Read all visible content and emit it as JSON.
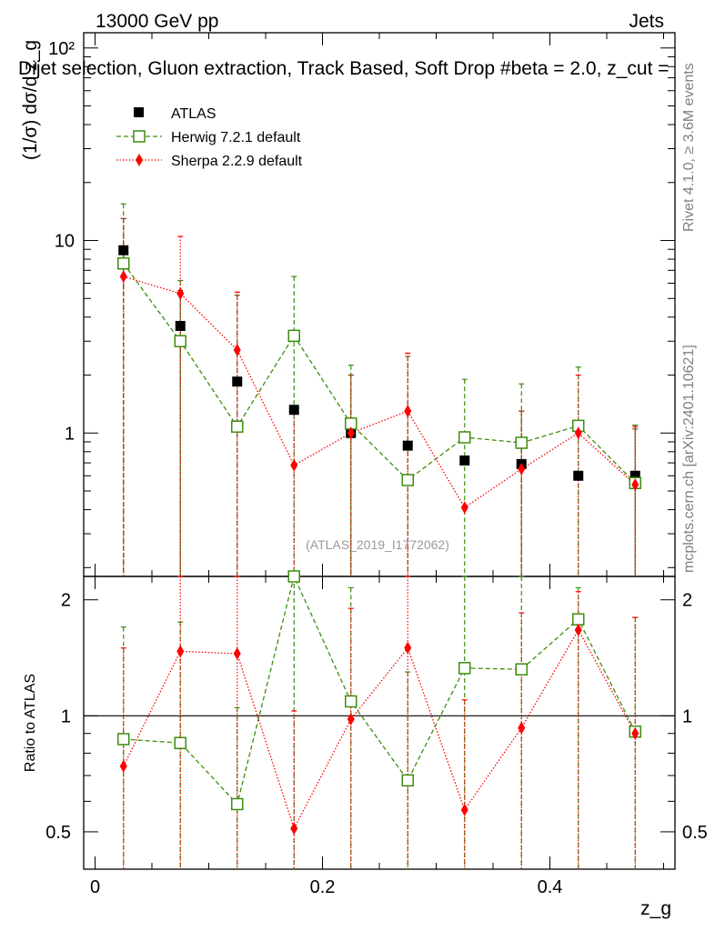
{
  "header": {
    "left": "13000 GeV pp",
    "right": "Jets",
    "title": "Dijet selection, Gluon extraction, Track Based, Soft Drop #beta = 2.0, z_cut ="
  },
  "side_labels": {
    "rivet": "Rivet 4.1.0, ≥ 3.6M events",
    "mcplots": "mcplots.cern.ch [arXiv:2401.10621]"
  },
  "watermark": "(ATLAS_2019_I1772062)",
  "colors": {
    "data": "#000000",
    "herwig": "#3c8d0d",
    "sherpa": "#ff0000"
  },
  "chart_data": {
    "type": "scatter",
    "xlabel": "z_g",
    "ylabel_main": "(1/σ) dσ/d z_g",
    "ylabel_ratio": "Ratio to ATLAS",
    "xlim": [
      -0.01,
      0.51
    ],
    "ylim_main": [
      0.18,
      120
    ],
    "ylim_ratio": [
      0.4,
      2.3
    ],
    "x_ticks": [
      "0",
      "0.2",
      "0.4"
    ],
    "x_tick_values": [
      0,
      0.2,
      0.4
    ],
    "y_ticks_main": [
      "1",
      "10",
      "10²"
    ],
    "y_tick_values_main": [
      1,
      10,
      100
    ],
    "y_ticks_ratio": [
      "0.5",
      "1",
      "2"
    ],
    "y_tick_values_ratio": [
      0.5,
      1,
      2
    ],
    "x": [
      0.025,
      0.075,
      0.125,
      0.175,
      0.225,
      0.275,
      0.325,
      0.375,
      0.425,
      0.475
    ],
    "legend": [
      "ATLAS",
      "Herwig 7.2.1 default",
      "Sherpa 2.2.9 default"
    ],
    "series": [
      {
        "name": "ATLAS",
        "values": [
          8.9,
          3.6,
          1.85,
          1.32,
          1.0,
          0.86,
          0.72,
          0.69,
          0.6,
          0.6
        ],
        "err_hi": [
          13.0,
          5.5,
          5.2,
          0.0,
          2.0,
          2.5,
          0.0,
          1.3,
          0.0,
          1.05
        ],
        "err_lo": [
          0.1,
          0.1,
          0.1,
          0.1,
          0.1,
          0.1,
          0.1,
          0.1,
          0.1,
          0.1
        ]
      },
      {
        "name": "Herwig 7.2.1 default",
        "values": [
          7.6,
          3.0,
          1.08,
          3.2,
          1.12,
          0.57,
          0.95,
          0.89,
          1.09,
          0.55
        ],
        "err_hi": [
          15.5,
          6.2,
          0.0,
          6.5,
          2.25,
          0.0,
          1.9,
          1.8,
          2.2,
          1.1
        ],
        "err_lo": [
          0.1,
          0.1,
          0.1,
          0.1,
          0.1,
          0.1,
          0.1,
          0.1,
          0.1,
          0.1
        ],
        "ratio": [
          0.87,
          0.85,
          0.59,
          2.4,
          1.09,
          0.68,
          1.33,
          1.32,
          1.78,
          0.91
        ],
        "ratio_err_hi": [
          1.7,
          1.75,
          1.05,
          2.4,
          2.15,
          1.3,
          2.4,
          2.4,
          2.15,
          1.8
        ],
        "ratio_err_lo": [
          0.4,
          0.4,
          0.4,
          0.4,
          0.4,
          0.4,
          0.4,
          0.4,
          0.4,
          0.4
        ]
      },
      {
        "name": "Sherpa 2.2.9 default",
        "values": [
          6.5,
          5.3,
          2.7,
          0.68,
          1.0,
          1.3,
          0.41,
          0.65,
          1.0,
          0.54
        ],
        "err_hi": [
          13.0,
          10.5,
          5.4,
          1.3,
          2.0,
          2.6,
          0.0,
          1.3,
          2.0,
          1.08
        ],
        "err_lo": [
          0.1,
          0.1,
          0.1,
          0.1,
          0.1,
          0.1,
          0.1,
          0.1,
          0.1,
          0.1
        ],
        "ratio": [
          0.74,
          1.47,
          1.45,
          0.51,
          0.98,
          1.5,
          0.57,
          0.93,
          1.67,
          0.9
        ],
        "ratio_err_hi": [
          1.5,
          2.4,
          2.4,
          1.03,
          1.9,
          2.4,
          1.1,
          1.85,
          2.1,
          1.8
        ],
        "ratio_err_lo": [
          0.4,
          0.4,
          0.4,
          0.4,
          0.4,
          0.4,
          0.4,
          0.4,
          0.4,
          0.4
        ]
      }
    ],
    "reference_line_ratio": 1
  }
}
